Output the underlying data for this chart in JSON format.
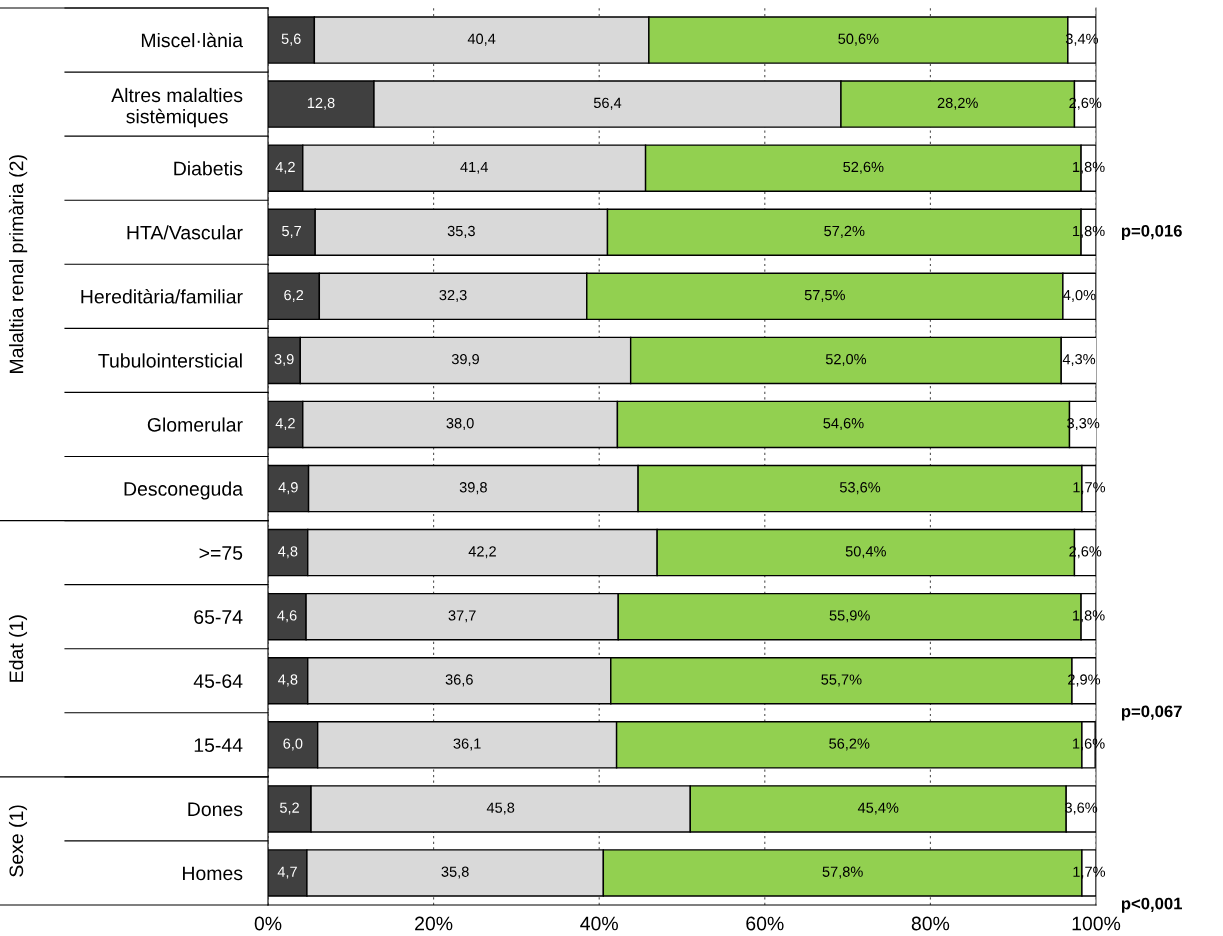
{
  "chart_data": {
    "type": "bar",
    "orientation": "horizontal",
    "stacked": true,
    "categories": [
      "Miscel·lània",
      "Altres malalties\nsistèmiques",
      "Diabetis",
      "HTA/Vascular",
      "Hereditària/familiar",
      "Tubulointersticial",
      "Glomerular",
      "Desconeguda",
      ">=75",
      "65-74",
      "45-64",
      "15-44",
      "Dones",
      "Homes"
    ],
    "series": [
      {
        "color": "#404040",
        "values": [
          5.6,
          12.8,
          4.2,
          5.7,
          6.2,
          3.9,
          4.2,
          4.9,
          4.8,
          4.6,
          4.8,
          6.0,
          5.2,
          4.7
        ],
        "value_labels": [
          "5,6",
          "12,8",
          "4,2",
          "5,7",
          "6,2",
          "3,9",
          "4,2",
          "4,9",
          "4,8",
          "4,6",
          "4,8",
          "6,0",
          "5,2",
          "4,7"
        ]
      },
      {
        "color": "#d9d9d9",
        "values": [
          40.4,
          56.4,
          41.4,
          35.3,
          32.3,
          39.9,
          38.0,
          39.8,
          42.2,
          37.7,
          36.6,
          36.1,
          45.8,
          35.8
        ],
        "value_labels": [
          "40,4",
          "56,4",
          "41,4",
          "35,3",
          "32,3",
          "39,9",
          "38,0",
          "39,8",
          "42,2",
          "37,7",
          "36,6",
          "36,1",
          "45,8",
          "35,8"
        ]
      },
      {
        "color": "#92d050",
        "values": [
          50.6,
          28.2,
          52.6,
          57.2,
          57.5,
          52.0,
          54.6,
          53.6,
          50.4,
          55.9,
          55.7,
          56.2,
          45.4,
          57.8
        ],
        "value_labels": [
          "50,6%",
          "28,2%",
          "52,6%",
          "57,2%",
          "57,5%",
          "52,0%",
          "54,6%",
          "53,6%",
          "50,4%",
          "55,9%",
          "55,7%",
          "56,2%",
          "45,4%",
          "57,8%"
        ]
      },
      {
        "color": "#ffffff",
        "values": [
          3.4,
          2.6,
          1.8,
          1.8,
          4.0,
          4.3,
          3.3,
          1.7,
          2.6,
          1.8,
          2.9,
          1.6,
          3.6,
          1.7
        ],
        "value_labels": [
          "3,4%",
          "2,6%",
          "1,8%",
          "1,8%",
          "4,0%",
          "4,3%",
          "3,3%",
          "1,7%",
          "2,6%",
          "1,8%",
          "2,9%",
          "1,6%",
          "3,6%",
          "1,7%"
        ]
      }
    ],
    "xlim": [
      0,
      100
    ],
    "xticks": [
      {
        "value": 0,
        "label": "0%"
      },
      {
        "value": 20,
        "label": "20%"
      },
      {
        "value": 40,
        "label": "40%"
      },
      {
        "value": 60,
        "label": "60%"
      },
      {
        "value": 80,
        "label": "80%"
      },
      {
        "value": 100,
        "label": "100%"
      }
    ],
    "grid": "x",
    "annotations": [
      "Malaltia renal primària (2)",
      "Edat (1)",
      "Sexe (1)",
      "p=0,016",
      "p=0,067",
      "p<0,001"
    ]
  }
}
